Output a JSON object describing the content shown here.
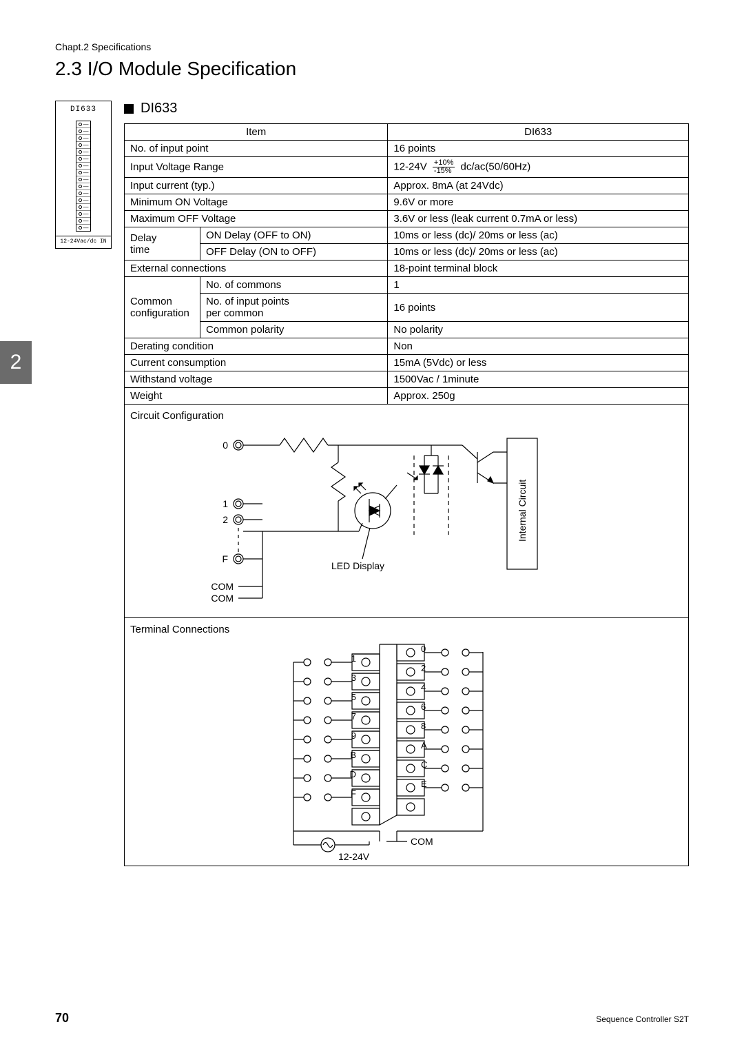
{
  "chapter_label": "Chapt.2   Specifications",
  "section_title": "2.3   I/O Module Specification",
  "tab_number": "2",
  "module_icon": {
    "label": "DI633",
    "footer": "12-24Vac/dc IN"
  },
  "sub_heading": "DI633",
  "spec_table": {
    "head_item": "Item",
    "head_model": "DI633",
    "rows": [
      {
        "label": "No. of input point",
        "value": "16 points"
      },
      {
        "label": "Input Voltage Range",
        "value_pre": "12-24V",
        "tol_top": "+10%",
        "tol_bot": "-15%",
        "value_post": "dc/ac(50/60Hz)"
      },
      {
        "label": "Input current (typ.)",
        "value": "Approx. 8mA (at 24Vdc)"
      },
      {
        "label": "Minimum ON Voltage",
        "value": "9.6V or more"
      },
      {
        "label": "Maximum OFF Voltage",
        "value": "3.6V or less (leak current 0.7mA or less)"
      }
    ],
    "delay": {
      "row_label_1": "Delay",
      "row_label_2": "time",
      "sub1": "ON Delay (OFF to ON)",
      "val1": "10ms or less (dc)/ 20ms or less (ac)",
      "sub2": "OFF Delay (ON to OFF)",
      "val2": "10ms or less (dc)/ 20ms or less (ac)"
    },
    "ext_conn": {
      "label": "External connections",
      "value": "18-point terminal block"
    },
    "common": {
      "row_label_1": "Common",
      "row_label_2": "configuration",
      "sub1": "No. of commons",
      "val1": "1",
      "sub2_a": "No. of input points",
      "sub2_b": "per common",
      "val2": "16 points",
      "sub3": "Common polarity",
      "val3": "No polarity"
    },
    "tail": [
      {
        "label": "Derating condition",
        "value": "Non"
      },
      {
        "label": "Current consumption",
        "value": "15mA (5Vdc) or less"
      },
      {
        "label": "Withstand voltage",
        "value": "1500Vac / 1minute"
      },
      {
        "label": "Weight",
        "value": "Approx. 250g"
      }
    ]
  },
  "circuit": {
    "title": "Circuit Configuration",
    "labels": {
      "t0": "0",
      "t1": "1",
      "t2": "2",
      "tF": "F",
      "com1": "COM",
      "com2": "COM",
      "led": "LED Display",
      "internal": "Internal Circuit"
    }
  },
  "terminal": {
    "title": "Terminal Connections",
    "left": [
      "1",
      "3",
      "5",
      "7",
      "9",
      "B",
      "D",
      "F"
    ],
    "right": [
      "0",
      "2",
      "4",
      "6",
      "8",
      "A",
      "C",
      "E"
    ],
    "com": "COM",
    "volt": "12-24V"
  },
  "footer": {
    "page": "70",
    "text": "Sequence Controller S2T"
  }
}
